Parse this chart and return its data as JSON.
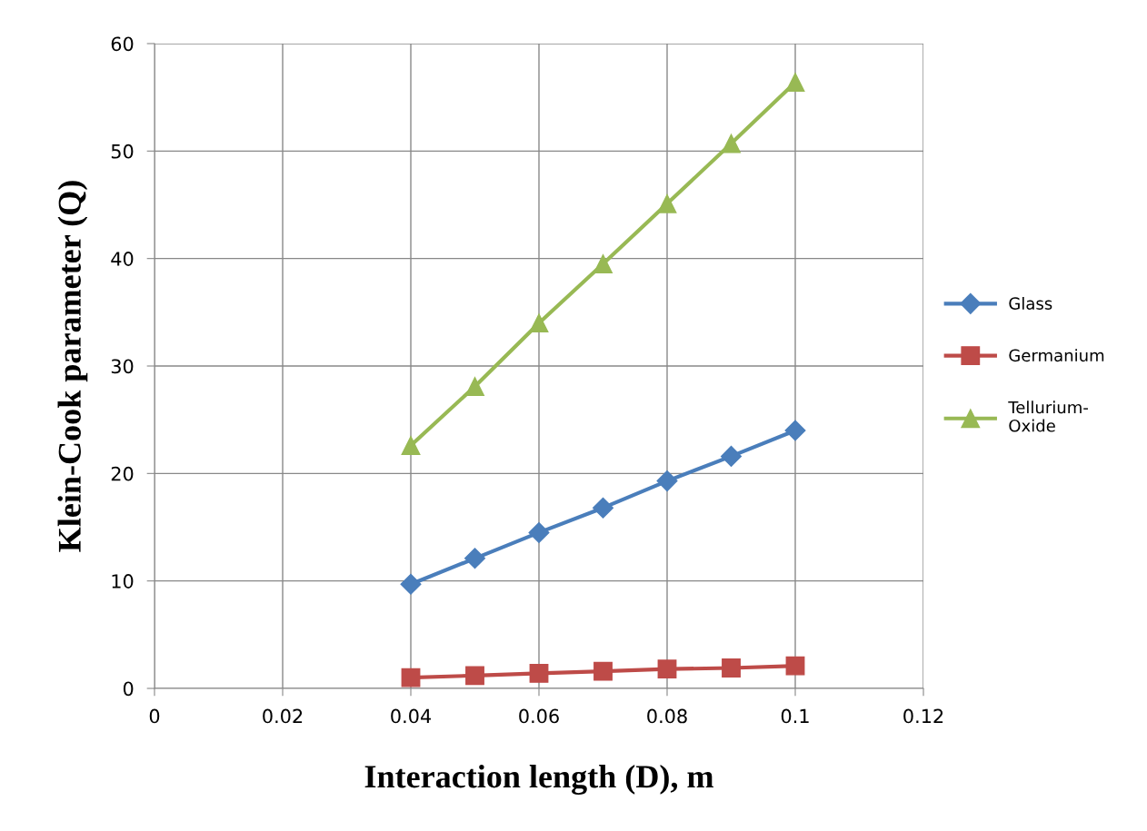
{
  "chart_data": {
    "type": "line",
    "xlabel": "Interaction length (D), m",
    "ylabel": "Klein-Cook parameter (Q)",
    "x": [
      0.04,
      0.05,
      0.06,
      0.07,
      0.08,
      0.09,
      0.1
    ],
    "series": [
      {
        "name": "Glass",
        "color": "#4a7ebb",
        "marker": "diamond",
        "values": [
          9.7,
          12.1,
          14.5,
          16.8,
          19.3,
          21.6,
          24.0
        ]
      },
      {
        "name": "Germanium",
        "color": "#be4b48",
        "marker": "square",
        "values": [
          1.0,
          1.2,
          1.4,
          1.6,
          1.8,
          1.9,
          2.1
        ]
      },
      {
        "name": "Tellurium-\nOxide",
        "color": "#98b954",
        "marker": "triangle",
        "values": [
          22.6,
          28.1,
          34.0,
          39.5,
          45.1,
          50.7,
          56.4
        ]
      }
    ],
    "xlim": [
      0,
      0.12
    ],
    "xticks": [
      0,
      0.02,
      0.04,
      0.06,
      0.08,
      0.1,
      0.12
    ],
    "ylim": [
      0,
      60
    ],
    "yticks": [
      0,
      10,
      20,
      30,
      40,
      50,
      60
    ],
    "grid": true,
    "legend": "right",
    "line_style": "solid"
  }
}
